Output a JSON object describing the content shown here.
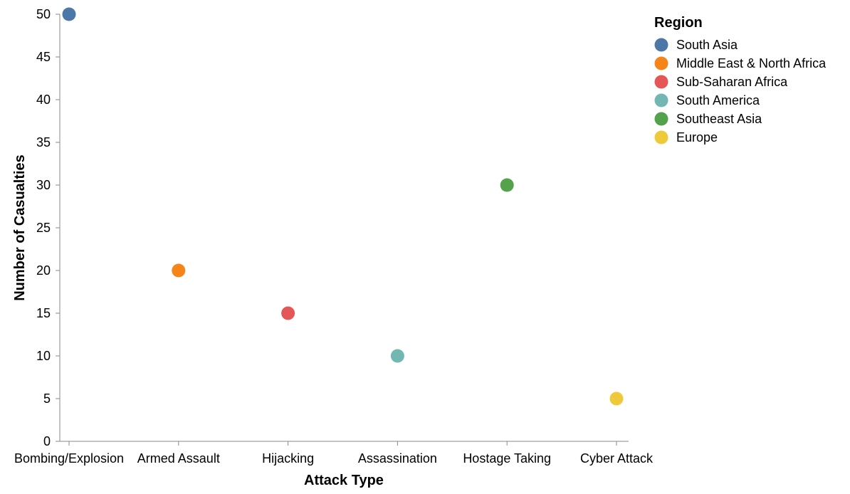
{
  "chart_data": {
    "type": "scatter",
    "xlabel": "Attack Type",
    "ylabel": "Number of Casualties",
    "categories": [
      "Bombing/Explosion",
      "Armed Assault",
      "Hijacking",
      "Assassination",
      "Hostage Taking",
      "Cyber Attack"
    ],
    "ylim": [
      0,
      50
    ],
    "yticks": [
      0,
      5,
      10,
      15,
      20,
      25,
      30,
      35,
      40,
      45,
      50
    ],
    "grid": false,
    "legend": {
      "title": "Region",
      "placement": "right"
    },
    "points": [
      {
        "x": "Bombing/Explosion",
        "y": 50,
        "region": "South Asia"
      },
      {
        "x": "Armed Assault",
        "y": 20,
        "region": "Middle East & North Africa"
      },
      {
        "x": "Hijacking",
        "y": 15,
        "region": "Sub-Saharan Africa"
      },
      {
        "x": "Assassination",
        "y": 10,
        "region": "South America"
      },
      {
        "x": "Hostage Taking",
        "y": 30,
        "region": "Southeast Asia"
      },
      {
        "x": "Cyber Attack",
        "y": 5,
        "region": "Europe"
      }
    ],
    "series": [
      {
        "name": "South Asia",
        "color": "#4c78a8"
      },
      {
        "name": "Middle East & North Africa",
        "color": "#f58518"
      },
      {
        "name": "Sub-Saharan Africa",
        "color": "#e45756"
      },
      {
        "name": "South America",
        "color": "#72b7b2"
      },
      {
        "name": "Southeast Asia",
        "color": "#54a24b"
      },
      {
        "name": "Europe",
        "color": "#eeca3b"
      }
    ]
  }
}
